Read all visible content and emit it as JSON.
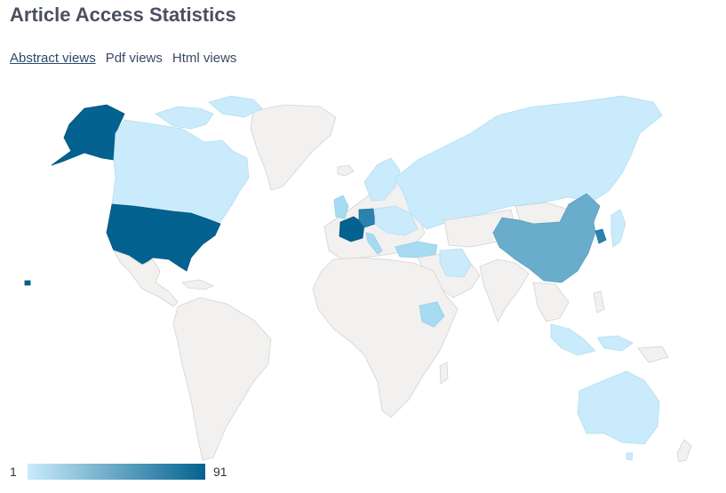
{
  "page": {
    "title": "Article Access Statistics"
  },
  "tabs": [
    {
      "label": "Abstract views",
      "active": true
    },
    {
      "label": "Pdf views",
      "active": false
    },
    {
      "label": "Html views",
      "active": false
    }
  ],
  "map": {
    "type": "world-choropleth",
    "legend": {
      "min": "1",
      "max": "91",
      "color_low": "#c9ebfb",
      "color_high": "#03628f"
    },
    "base_color": "#f2f1ef",
    "highlighted_countries": [
      "United States",
      "Alaska",
      "Canada",
      "France",
      "Germany",
      "China",
      "Russia",
      "Australia",
      "Ethiopia",
      "United Kingdom",
      "Japan",
      "South Korea",
      "Iran",
      "Turkey",
      "Indonesia",
      "Malaysia"
    ]
  }
}
